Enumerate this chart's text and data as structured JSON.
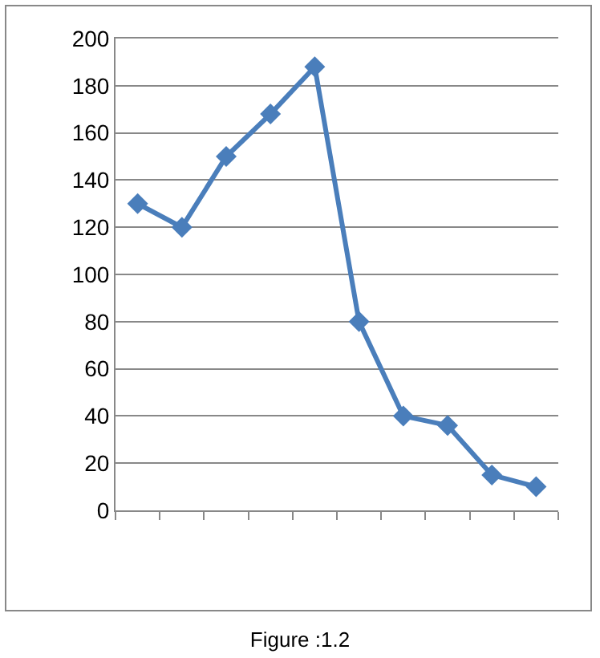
{
  "chart_data": {
    "type": "line",
    "categories": [
      null,
      null,
      null,
      null,
      null,
      null,
      null,
      null,
      null,
      null
    ],
    "series": [
      {
        "color": "#4a7ebb",
        "values": [
          130,
          120,
          150,
          168,
          188,
          80,
          40,
          36,
          15,
          10
        ]
      }
    ],
    "ylim": [
      0,
      200
    ],
    "yticks": [
      0,
      20,
      40,
      60,
      80,
      100,
      120,
      140,
      160,
      180,
      200
    ],
    "grid": "y",
    "tick_labels": "y",
    "marker": "diamond",
    "line_style": "solid",
    "annotations": [
      "Figure :1.2"
    ]
  }
}
